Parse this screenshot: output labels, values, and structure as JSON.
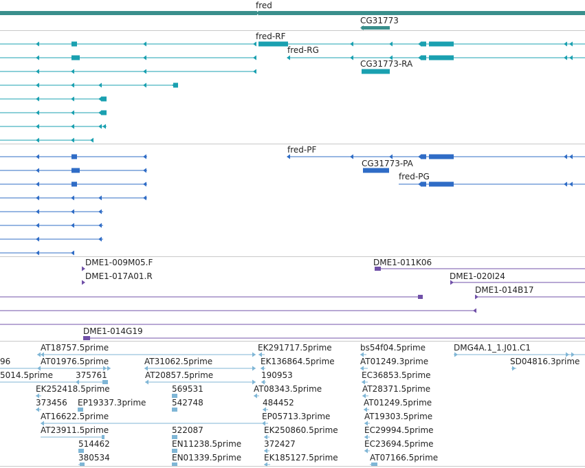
{
  "colors": {
    "gene": "#3a8f8c",
    "transcript_rna": "#1aa0b0",
    "transcript_protein": "#2f6cc6",
    "clone": "#7050a8",
    "est": "#7fb6d6",
    "divider": "#c8c8c8"
  },
  "tracks": {
    "gene": {
      "features": [
        {
          "label": "fred"
        },
        {
          "label": "CG31773"
        }
      ]
    },
    "mrna": {
      "features": [
        {
          "label": "fred-RF"
        },
        {
          "label": "fred-RG"
        },
        {
          "label": "CG31773-RA"
        }
      ]
    },
    "protein": {
      "features": [
        {
          "label": "fred-PF"
        },
        {
          "label": "CG31773-PA"
        },
        {
          "label": "fred-PG"
        }
      ]
    },
    "clones": {
      "features": [
        {
          "label": "DME1-009M05.F"
        },
        {
          "label": "DME1-017A01.R"
        },
        {
          "label": "DME1-011K06"
        },
        {
          "label": "DME1-020I24"
        },
        {
          "label": "DME1-014B17"
        },
        {
          "label": "DME1-014G19"
        }
      ]
    },
    "est": {
      "features": [
        {
          "label": "AT18757.5prime"
        },
        {
          "label": "EK291717.5prime"
        },
        {
          "label": "bs54f04.5prime"
        },
        {
          "label": "DMG4A.1_1.J01.C1"
        },
        {
          "label": "96"
        },
        {
          "label": "AT01976.5prime"
        },
        {
          "label": "AT31062.5prime"
        },
        {
          "label": "EK136864.5prime"
        },
        {
          "label": "AT01249.3prime"
        },
        {
          "label": "SD04816.3prime"
        },
        {
          "label": "5014.5prime"
        },
        {
          "label": "375761"
        },
        {
          "label": "AT20857.5prime"
        },
        {
          "label": "190953"
        },
        {
          "label": "EC36853.5prime"
        },
        {
          "label": "EK252418.5prime"
        },
        {
          "label": "569531"
        },
        {
          "label": "AT08343.5prime"
        },
        {
          "label": "AT28371.5prime"
        },
        {
          "label": "373456"
        },
        {
          "label": "EP19337.3prime"
        },
        {
          "label": "542748"
        },
        {
          "label": "484452"
        },
        {
          "label": "AT01249.5prime"
        },
        {
          "label": "AT16622.5prime"
        },
        {
          "label": "EP05713.3prime"
        },
        {
          "label": "AT19303.5prime"
        },
        {
          "label": "AT23911.5prime"
        },
        {
          "label": "522087"
        },
        {
          "label": "EK250860.5prime"
        },
        {
          "label": "EC29994.5prime"
        },
        {
          "label": "514462"
        },
        {
          "label": "EN11238.5prime"
        },
        {
          "label": "372427"
        },
        {
          "label": "EC23694.5prime"
        },
        {
          "label": "380534"
        },
        {
          "label": "EN01339.5prime"
        },
        {
          "label": "EK185127.5prime"
        },
        {
          "label": "AT07166.5prime"
        }
      ]
    }
  }
}
